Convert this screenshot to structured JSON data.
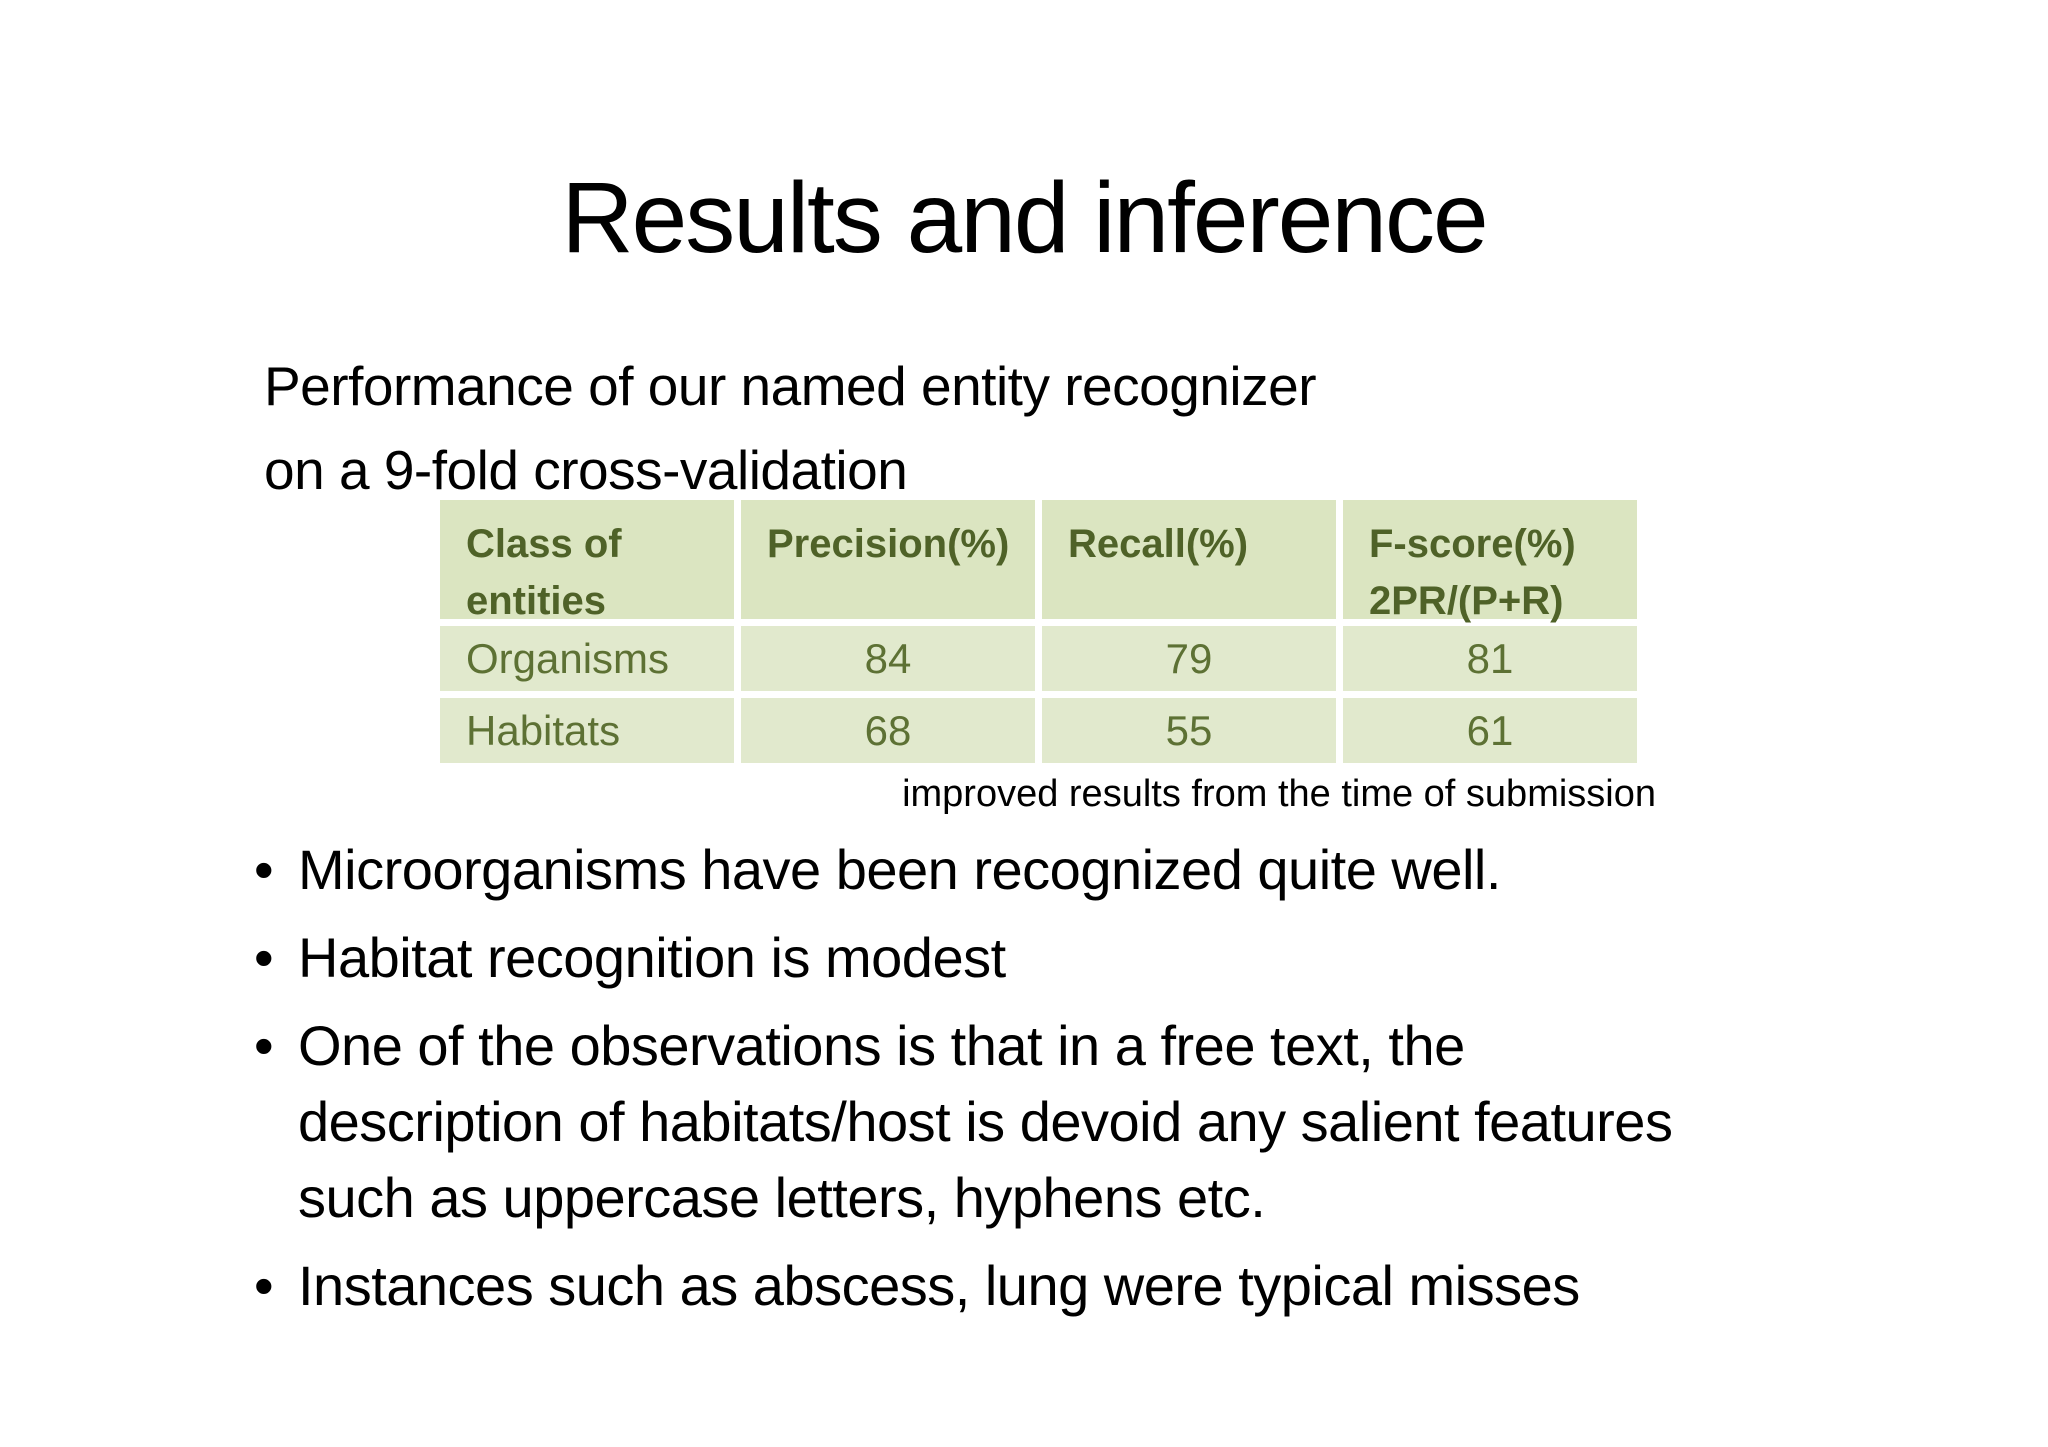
{
  "slide": {
    "title": "Results and inference",
    "subtitle": "Performance of our named entity recognizer\non a 9-fold cross-validation",
    "table": {
      "headers": {
        "class_of_entities": "Class of\nentities",
        "precision": "Precision(%)",
        "recall": "Recall(%)",
        "fscore": "F-score(%)\n2PR/(P+R)"
      },
      "rows": [
        {
          "label": "Organisms",
          "precision": "84",
          "recall": "79",
          "fscore": "81"
        },
        {
          "label": "Habitats",
          "precision": "68",
          "recall": "55",
          "fscore": "61"
        }
      ],
      "caption": "improved results from the time of submission"
    },
    "bullets": [
      "Microorganisms have been recognized quite well.",
      "Habitat recognition is modest",
      "One of the observations is that in a free text, the\ndescription of habitats/host is devoid any salient features\nsuch as uppercase letters, hyphens etc.",
      "Instances such as abscess, lung were typical misses"
    ],
    "colors": {
      "table_header_bg": "#dbe5c1",
      "table_row_bg": "#e1e9cd",
      "table_header_text": "#4f6228",
      "table_data_text": "#5d7134",
      "body_text": "#000000",
      "slide_bg": "#ffffff"
    }
  }
}
